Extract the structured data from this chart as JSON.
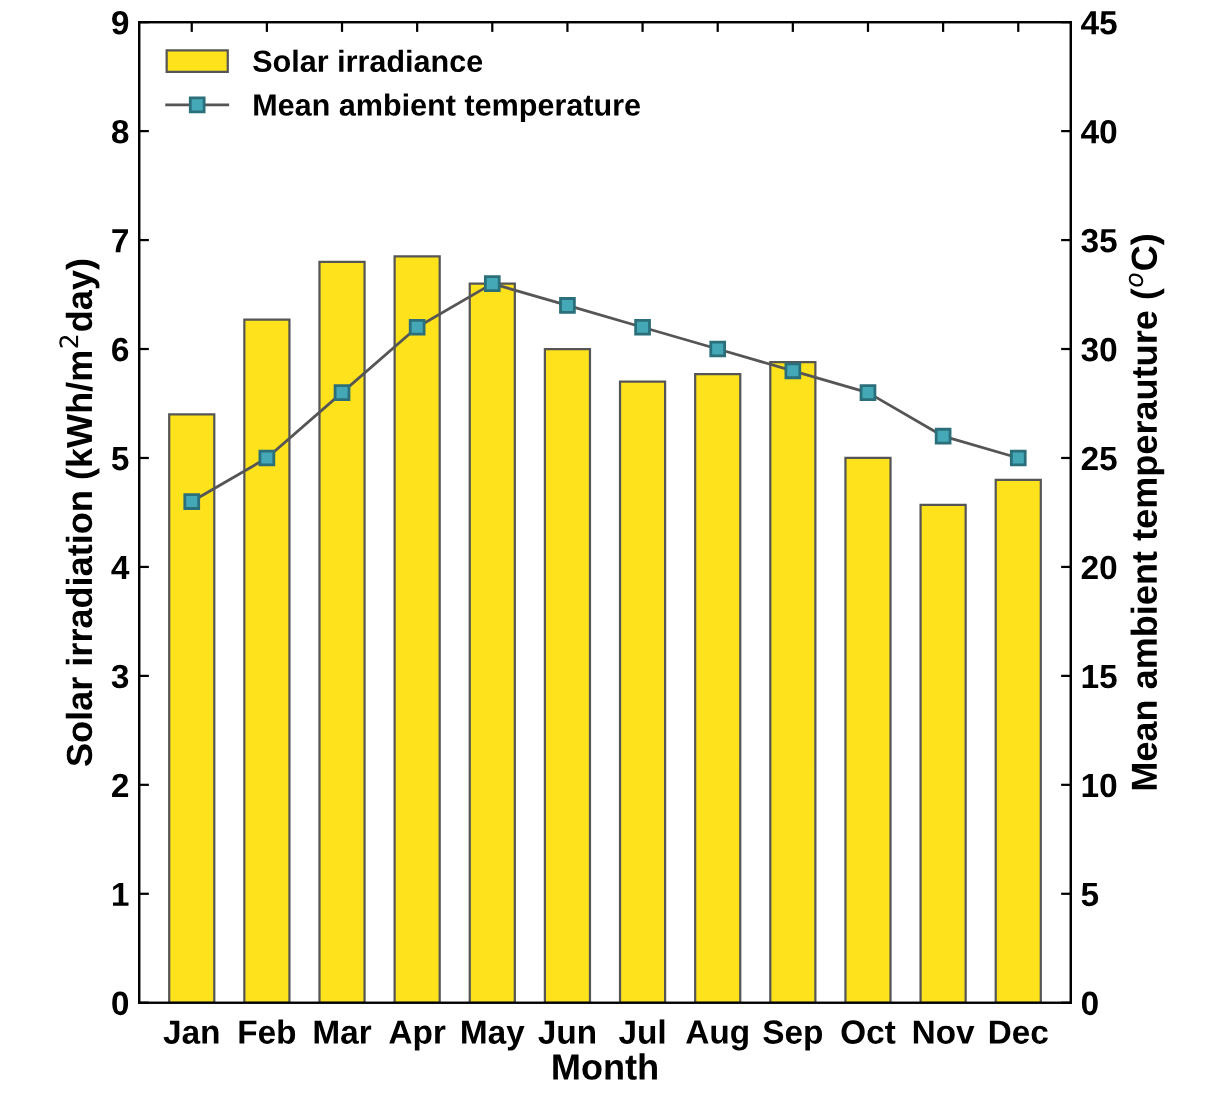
{
  "chart_data": {
    "type": "bar",
    "xlabel": "Month",
    "ylabel": "Solar irradiation (kWh/m$^{2}$day)",
    "y2label": "Mean ambient temperauture ($^{o}$C)",
    "categories": [
      "Jan",
      "Feb",
      "Mar",
      "Apr",
      "May",
      "Jun",
      "Jul",
      "Aug",
      "Sep",
      "Oct",
      "Nov",
      "Dec"
    ],
    "series": [
      {
        "name": "Solar irradiance",
        "color": "#fde21c",
        "values": [
          5.4,
          6.27,
          6.8,
          6.85,
          6.6,
          6.0,
          5.7,
          5.77,
          5.88,
          5.0,
          4.57,
          4.8
        ]
      },
      {
        "name": "Mean ambient temperature",
        "type": "line",
        "axis": "y2",
        "color": "#45a8b6",
        "marker": "square",
        "values": [
          23,
          25,
          28,
          31,
          33,
          32,
          31,
          30,
          29,
          28,
          26,
          25
        ]
      }
    ],
    "ylim": [
      0,
      9
    ],
    "yticks": [
      0,
      1,
      2,
      3,
      4,
      5,
      6,
      7,
      8,
      9
    ],
    "y2lim": [
      0,
      45
    ],
    "y2ticks": [
      0,
      5,
      10,
      15,
      20,
      25,
      30,
      35,
      40,
      45
    ],
    "legend": "top left",
    "grid": false
  }
}
